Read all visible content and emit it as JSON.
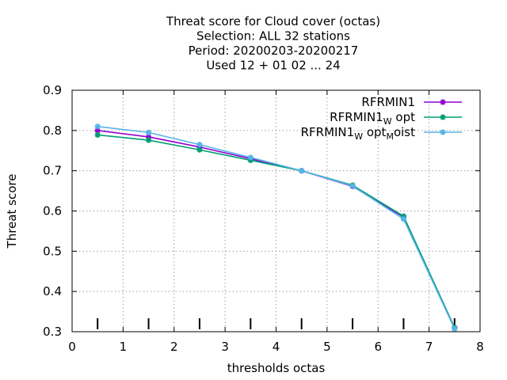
{
  "chart_data": {
    "type": "line",
    "title_lines": [
      "Threat score  for Cloud cover (octas)",
      "Selection: ALL     32 stations",
      "Period: 20200203-20200217",
      "Used  12 + 01 02 ... 24"
    ],
    "xlabel": "thresholds octas",
    "ylabel": "Threat score",
    "xlim": [
      0,
      8
    ],
    "ylim": [
      0.3,
      0.9
    ],
    "x_ticks": [
      0,
      1,
      2,
      3,
      4,
      5,
      6,
      7,
      8
    ],
    "y_ticks": [
      "0.3",
      "0.4",
      "0.5",
      "0.6",
      "0.7",
      "0.8",
      "0.9"
    ],
    "grid": true,
    "legend_position": "top-right",
    "threshold_markers": [
      0.5,
      1.5,
      2.5,
      3.5,
      4.5,
      5.5,
      6.5,
      7.5
    ],
    "series": [
      {
        "name": "RFRMIN1",
        "legend": {
          "base": "RFRMIN1",
          "parts": []
        },
        "color": "#9400d3",
        "x": [
          0.5,
          1.5,
          2.5,
          3.5,
          4.5,
          5.5,
          6.5,
          7.5
        ],
        "y": [
          0.8,
          0.784,
          0.759,
          0.73,
          0.7,
          0.661,
          0.585,
          0.31
        ]
      },
      {
        "name": "RFRMIN1_W opt",
        "legend": {
          "base": "RFRMIN1",
          "parts": [
            {
              "sub": "W",
              "text": " opt"
            }
          ]
        },
        "color": "#009e73",
        "x": [
          0.5,
          1.5,
          2.5,
          3.5,
          4.5,
          5.5,
          6.5,
          7.5
        ],
        "y": [
          0.789,
          0.776,
          0.752,
          0.726,
          0.7,
          0.664,
          0.587,
          0.31
        ]
      },
      {
        "name": "RFRMIN1_W opt_M oist",
        "legend": {
          "base": "RFRMIN1",
          "parts": [
            {
              "sub": "W",
              "text": " opt"
            },
            {
              "sub": "M",
              "text": "oist"
            }
          ]
        },
        "color": "#56b4e9",
        "x": [
          0.5,
          1.5,
          2.5,
          3.5,
          4.5,
          5.5,
          6.5,
          7.5
        ],
        "y": [
          0.81,
          0.795,
          0.765,
          0.733,
          0.7,
          0.662,
          0.58,
          0.307
        ]
      }
    ]
  }
}
